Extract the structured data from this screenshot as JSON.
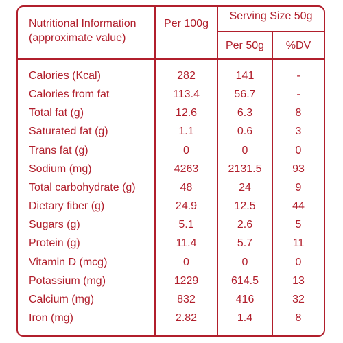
{
  "header": {
    "title": "Nutritional Information (approximate value)",
    "per_100g": "Per 100g",
    "serving_size": "Serving Size 50g",
    "per_50g": "Per 50g",
    "dv": "%DV"
  },
  "rows": [
    {
      "nutrient": "Calories (Kcal)",
      "per100": "282",
      "per50": "141",
      "dv": "-"
    },
    {
      "nutrient": "Calories from fat",
      "per100": "113.4",
      "per50": "56.7",
      "dv": "-"
    },
    {
      "nutrient": "Total fat (g)",
      "per100": "12.6",
      "per50": "6.3",
      "dv": "8"
    },
    {
      "nutrient": "Saturated fat (g)",
      "per100": "1.1",
      "per50": "0.6",
      "dv": "3"
    },
    {
      "nutrient": "Trans fat (g)",
      "per100": "0",
      "per50": "0",
      "dv": "0"
    },
    {
      "nutrient": "Sodium (mg)",
      "per100": "4263",
      "per50": "2131.5",
      "dv": "93"
    },
    {
      "nutrient": "Total carbohydrate (g)",
      "per100": "48",
      "per50": "24",
      "dv": "9"
    },
    {
      "nutrient": "Dietary fiber (g)",
      "per100": "24.9",
      "per50": "12.5",
      "dv": "44"
    },
    {
      "nutrient": "Sugars (g)",
      "per100": "5.1",
      "per50": "2.6",
      "dv": "5"
    },
    {
      "nutrient": "Protein (g)",
      "per100": "11.4",
      "per50": "5.7",
      "dv": "11"
    },
    {
      "nutrient": "Vitamin D (mcg)",
      "per100": "0",
      "per50": "0",
      "dv": "0"
    },
    {
      "nutrient": "Potassium (mg)",
      "per100": "1229",
      "per50": "614.5",
      "dv": "13"
    },
    {
      "nutrient": "Calcium (mg)",
      "per100": "832",
      "per50": "416",
      "dv": "32"
    },
    {
      "nutrient": "Iron (mg)",
      "per100": "2.82",
      "per50": "1.4",
      "dv": "8"
    }
  ],
  "colors": {
    "accent": "#b11f2c",
    "background": "#ffffff"
  }
}
